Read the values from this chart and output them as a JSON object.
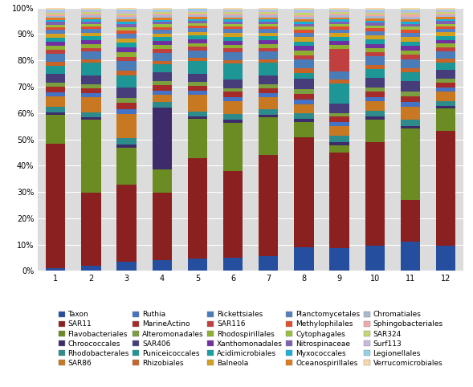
{
  "categories": [
    "1",
    "2",
    "3",
    "4",
    "5",
    "6",
    "7",
    "8",
    "9",
    "10",
    "11",
    "12"
  ],
  "taxa": [
    "Taxon",
    "SAR11",
    "Flavobacteriales",
    "Chroococcales",
    "Rhodobacterales",
    "SAR86",
    "Ruthia",
    "MarineActino",
    "Alteromonadales",
    "SAR406",
    "Puniceicoccales",
    "Rhizobiales",
    "Rickettsiales",
    "SAR116",
    "Rhodospirillales",
    "Xanthomonadales",
    "Acidimicrobiales",
    "Balneola",
    "Planctomycetales",
    "Methylophilales",
    "Cytophagales",
    "Nitrospinaceae",
    "Myxococcales",
    "Oceanospirillales",
    "Chromatiales",
    "Sphingobacteriales",
    "SAR324",
    "Surf113",
    "Legionellales",
    "Verrucomicrobiales"
  ],
  "colors": [
    "#254F9E",
    "#8B2020",
    "#6B8B23",
    "#3D2B6B",
    "#2E8B8B",
    "#C87820",
    "#4472C4",
    "#A52A2A",
    "#7B9E3E",
    "#483D7B",
    "#1E9696",
    "#C86428",
    "#4A7CB8",
    "#C04040",
    "#8DB030",
    "#7030A0",
    "#18A0A0",
    "#D4A020",
    "#5580C0",
    "#E05030",
    "#98C040",
    "#8060B0",
    "#18B0D8",
    "#E07820",
    "#A8B8D0",
    "#F0A8A8",
    "#C0D870",
    "#C8B8E0",
    "#90D0E8",
    "#F8D8A8"
  ],
  "data": {
    "Taxon": [
      1.0,
      2.0,
      3.0,
      4.0,
      5.0,
      5.0,
      6.0,
      8.0,
      9.0,
      9.0,
      10.0,
      10.0
    ],
    "SAR11": [
      47.0,
      29.0,
      25.0,
      26.0,
      41.0,
      34.0,
      40.0,
      37.0,
      37.0,
      37.0,
      14.0,
      46.0
    ],
    "Flavobacteriales": [
      11.0,
      29.0,
      12.0,
      9.0,
      16.0,
      19.0,
      15.0,
      5.0,
      3.0,
      8.0,
      24.0,
      9.0
    ],
    "Chroococcales": [
      1.0,
      1.0,
      1.0,
      24.0,
      1.0,
      1.0,
      1.0,
      1.0,
      1.0,
      1.0,
      1.0,
      1.0
    ],
    "Rhodobacterales": [
      2.0,
      2.0,
      2.0,
      2.0,
      2.0,
      2.5,
      2.0,
      2.0,
      2.5,
      2.0,
      2.0,
      2.0
    ],
    "SAR86": [
      4.0,
      6.0,
      8.0,
      3.0,
      7.0,
      5.0,
      5.0,
      3.0,
      4.0,
      3.5,
      4.5,
      4.0
    ],
    "Ruthia": [
      1.5,
      1.5,
      1.5,
      1.5,
      1.5,
      1.5,
      1.5,
      1.5,
      1.5,
      1.5,
      1.5,
      1.5
    ],
    "MarineActino": [
      2.0,
      2.0,
      2.0,
      2.0,
      2.0,
      2.0,
      2.0,
      2.0,
      2.0,
      2.0,
      2.0,
      2.0
    ],
    "Alteromonadales": [
      1.5,
      1.5,
      1.5,
      1.5,
      1.5,
      1.5,
      1.5,
      1.5,
      1.5,
      1.5,
      1.5,
      1.5
    ],
    "SAR406": [
      3.5,
      3.5,
      3.5,
      3.5,
      3.5,
      3.5,
      3.5,
      3.5,
      3.5,
      3.5,
      3.5,
      3.5
    ],
    "Puniceicoccales": [
      3.0,
      5.0,
      4.0,
      3.0,
      5.0,
      6.0,
      5.0,
      2.0,
      8.0,
      3.0,
      3.0,
      3.0
    ],
    "Rhizobiales": [
      1.5,
      1.5,
      1.5,
      1.5,
      1.5,
      1.5,
      1.5,
      1.5,
      1.5,
      1.5,
      1.5,
      1.5
    ],
    "Rickettsiales": [
      3.0,
      3.0,
      3.0,
      3.0,
      3.0,
      3.0,
      3.0,
      3.0,
      3.0,
      3.0,
      3.0,
      3.0
    ],
    "SAR116": [
      1.5,
      1.5,
      1.5,
      1.5,
      1.5,
      1.5,
      1.5,
      1.5,
      9.0,
      1.5,
      1.5,
      1.5
    ],
    "Rhodospirillales": [
      1.5,
      1.5,
      1.5,
      1.5,
      1.5,
      1.5,
      1.5,
      1.5,
      1.5,
      1.5,
      1.5,
      1.5
    ],
    "Xanthomonadales": [
      1.5,
      1.5,
      1.5,
      1.5,
      1.5,
      1.5,
      1.5,
      1.5,
      1.5,
      1.5,
      1.5,
      1.5
    ],
    "Acidimicrobiales": [
      1.5,
      1.5,
      1.5,
      1.5,
      1.5,
      1.5,
      1.5,
      1.5,
      1.5,
      1.5,
      1.5,
      1.5
    ],
    "Balneola": [
      1.5,
      1.5,
      1.5,
      1.5,
      1.5,
      1.5,
      1.5,
      1.5,
      1.5,
      1.5,
      1.5,
      1.5
    ],
    "Planctomycetales": [
      1.5,
      1.5,
      1.5,
      1.5,
      1.5,
      1.5,
      1.5,
      1.5,
      1.5,
      1.5,
      1.5,
      1.5
    ],
    "Methylophilales": [
      1.0,
      1.0,
      1.0,
      1.0,
      1.0,
      1.0,
      1.0,
      1.0,
      1.0,
      1.0,
      1.0,
      1.0
    ],
    "Cytophagales": [
      1.0,
      1.0,
      1.0,
      1.0,
      1.0,
      1.0,
      1.0,
      1.0,
      1.0,
      1.0,
      1.0,
      1.0
    ],
    "Nitrospinaceae": [
      1.0,
      1.0,
      1.0,
      1.0,
      1.0,
      1.0,
      1.0,
      1.0,
      1.0,
      1.0,
      1.0,
      1.0
    ],
    "Myxococcales": [
      0.8,
      0.8,
      0.8,
      0.8,
      0.8,
      0.8,
      0.8,
      0.8,
      0.8,
      0.8,
      0.8,
      0.8
    ],
    "Oceanospirillales": [
      0.8,
      0.8,
      0.8,
      0.8,
      0.8,
      0.8,
      0.8,
      0.8,
      0.8,
      0.8,
      0.8,
      0.8
    ],
    "Chromatiales": [
      0.8,
      0.8,
      0.8,
      0.8,
      0.8,
      0.8,
      0.8,
      0.8,
      0.8,
      0.8,
      0.8,
      0.8
    ],
    "Sphingobacteriales": [
      0.6,
      0.6,
      0.6,
      0.6,
      0.6,
      0.6,
      0.6,
      0.6,
      0.6,
      0.6,
      0.6,
      0.6
    ],
    "SAR324": [
      0.6,
      0.6,
      0.6,
      0.6,
      0.6,
      0.6,
      0.6,
      0.6,
      0.6,
      0.6,
      0.6,
      0.6
    ],
    "Surf113": [
      0.6,
      0.6,
      0.6,
      0.6,
      0.6,
      0.6,
      0.6,
      0.6,
      0.6,
      0.6,
      0.6,
      0.6
    ],
    "Legionellales": [
      0.6,
      0.6,
      0.6,
      0.6,
      0.6,
      0.6,
      0.6,
      0.6,
      0.6,
      0.6,
      0.6,
      0.6
    ],
    "Verrucomicrobiales": [
      0.6,
      0.6,
      0.6,
      0.6,
      0.6,
      0.6,
      0.6,
      0.6,
      0.6,
      0.6,
      0.6,
      0.6
    ]
  },
  "ylim": [
    0,
    100
  ],
  "yticks": [
    0,
    10,
    20,
    30,
    40,
    50,
    60,
    70,
    80,
    90,
    100
  ],
  "yticklabels": [
    "0%",
    "10%",
    "20%",
    "30%",
    "40%",
    "50%",
    "60%",
    "70%",
    "80%",
    "90%",
    "100%"
  ],
  "plot_bg": "#DCDCDC",
  "fig_bg": "#FFFFFF",
  "bar_width": 0.55,
  "grid_color": "#FFFFFF",
  "tick_fontsize": 7,
  "legend_fontsize": 6.5
}
